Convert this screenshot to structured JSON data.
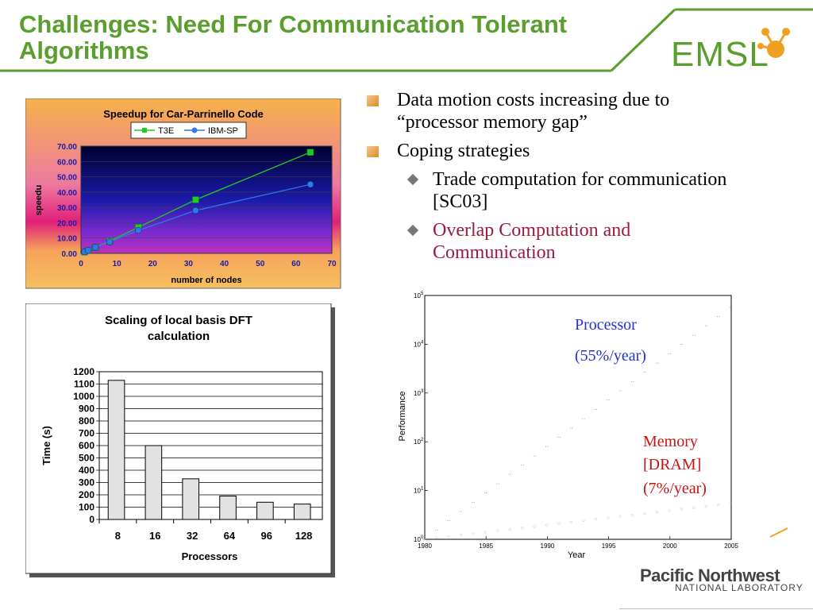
{
  "slide": {
    "title_line1": "Challenges: Need For Communication Tolerant",
    "title_line2": "Algorithms",
    "logo_text": "EMSL",
    "org_line1": "Pacific Northwest",
    "org_line2": "NATIONAL LABORATORY",
    "colors": {
      "title": "#5a9e2d",
      "accent": "#9b1c3c",
      "bullet": "#e08a2a"
    }
  },
  "bullets": [
    {
      "level": 1,
      "lines": [
        "Data motion costs increasing due to",
        "“processor memory gap”"
      ]
    },
    {
      "level": 1,
      "lines": [
        "Coping strategies"
      ]
    },
    {
      "level": 2,
      "lines": [
        "Trade computation for communication",
        "[SC03]"
      ]
    },
    {
      "level": 2,
      "lines": [
        "Overlap Computation and",
        "Communication"
      ],
      "highlight": true
    }
  ],
  "chart_data": [
    {
      "type": "line",
      "title": "Speedup for Car-Parrinello Code",
      "xlabel": "number of nodes",
      "ylabel": "speedu",
      "xlim": [
        0,
        70
      ],
      "ylim": [
        0,
        70
      ],
      "xticks": [
        "0",
        "10",
        "20",
        "30",
        "40",
        "50",
        "60",
        "70"
      ],
      "yticks": [
        "0.00",
        "10.00",
        "20.00",
        "30.00",
        "40.00",
        "50.00",
        "60.00",
        "70.00"
      ],
      "legend": "top",
      "series": [
        {
          "name": "T3E",
          "color": "#22cc22",
          "x": [
            1,
            2,
            4,
            8,
            16,
            32,
            64
          ],
          "y": [
            1,
            2,
            4,
            8,
            17,
            35,
            66
          ]
        },
        {
          "name": "IBM-SP",
          "color": "#3377ee",
          "x": [
            1,
            2,
            4,
            8,
            16,
            32,
            64
          ],
          "y": [
            1,
            2,
            4,
            7.5,
            15,
            28,
            45
          ]
        }
      ]
    },
    {
      "type": "bar",
      "title_lines": [
        "Scaling of local basis DFT",
        "calculation"
      ],
      "xlabel": "Processors",
      "ylabel": "Time (s)",
      "categories": [
        "8",
        "16",
        "32",
        "64",
        "96",
        "128"
      ],
      "values": [
        1130,
        600,
        330,
        190,
        140,
        125
      ],
      "ylim": [
        0,
        1200
      ],
      "yticks": [
        "0",
        "100",
        "200",
        "300",
        "400",
        "500",
        "600",
        "700",
        "800",
        "900",
        "1000",
        "1100",
        "1200"
      ],
      "grid": true
    },
    {
      "type": "scatter",
      "xlabel": "Year",
      "ylabel": "Performance",
      "log_y": true,
      "xlim": [
        1980,
        2005
      ],
      "xticks": [
        "1980",
        "1985",
        "1990",
        "1995",
        "2000",
        "2005"
      ],
      "yticks": [
        "10",
        "10",
        "10",
        "10",
        "10",
        "10"
      ],
      "ytick_exps": [
        "0",
        "1",
        "2",
        "3",
        "4",
        "5"
      ],
      "annotations": {
        "processor": [
          "Processor",
          "(55%/year)"
        ],
        "memory": [
          "Memory",
          "[DRAM]",
          "(7%/year)"
        ]
      },
      "series": [
        {
          "name": "Processor",
          "color": "#3344dd",
          "rate": 1.55,
          "start": 1
        },
        {
          "name": "Memory",
          "color": "#ee88aa",
          "rate": 1.07,
          "start": 1
        }
      ]
    }
  ]
}
